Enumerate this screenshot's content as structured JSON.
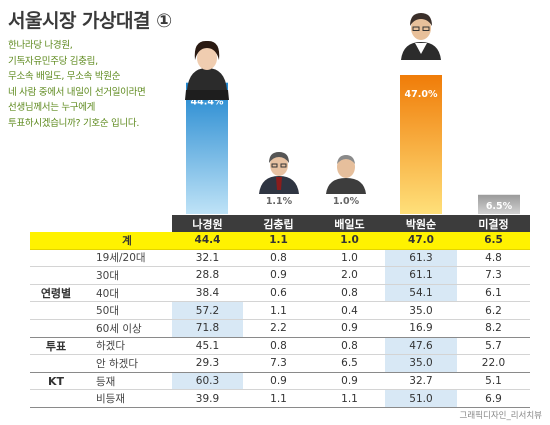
{
  "title": "서울시장 가상대결 ①",
  "question_lines": [
    "한나라당 나경원,",
    "기독자유민주당 김충립,",
    "무소속 배일도, 무소속 박원순",
    "네 사람 중에서 내일이 선거일이라면",
    "선생님께서는 누구에게",
    "투표하시겠습니까? 기호순 입니다."
  ],
  "credit": "그래픽디자인_리서치뷰",
  "colors": {
    "blue_bar": "#2f9bdc",
    "orange_bar": "#f08a0c",
    "gray_bar": "#a8a8a8",
    "header_bg": "#3c3c3c",
    "total_row": "#fff200",
    "highlight": "#d8e8f5"
  },
  "chart_data": {
    "type": "bar",
    "title": "서울시장 가상대결 ①",
    "categories": [
      "나경원",
      "김충립",
      "배일도",
      "박원순",
      "미결정"
    ],
    "values": [
      44.4,
      1.1,
      1.0,
      47.0,
      6.5
    ],
    "value_labels": [
      "44.4%",
      "1.1%",
      "1.0%",
      "47.0%",
      "6.5%"
    ],
    "bar_colors": [
      "blue",
      "none",
      "none",
      "orange",
      "gray"
    ],
    "ylim": [
      0,
      47.0
    ]
  },
  "table": {
    "columns": [
      "나경원",
      "김충립",
      "배일도",
      "박원순",
      "미결정"
    ],
    "rows": [
      {
        "group": "",
        "label": "계",
        "values": [
          "44.4",
          "1.1",
          "1.0",
          "47.0",
          "6.5"
        ],
        "total": true,
        "hl": []
      },
      {
        "group": "",
        "label": "19세/20대",
        "values": [
          "32.1",
          "0.8",
          "1.0",
          "61.3",
          "4.8"
        ],
        "hl": [
          3
        ]
      },
      {
        "group": "",
        "label": "30대",
        "values": [
          "28.8",
          "0.9",
          "2.0",
          "61.1",
          "7.3"
        ],
        "hl": [
          3
        ]
      },
      {
        "group": "연령별",
        "label": "40대",
        "values": [
          "38.4",
          "0.6",
          "0.8",
          "54.1",
          "6.1"
        ],
        "hl": [
          3
        ]
      },
      {
        "group": "",
        "label": "50대",
        "values": [
          "57.2",
          "1.1",
          "0.4",
          "35.0",
          "6.2"
        ],
        "hl": [
          0
        ]
      },
      {
        "group": "",
        "label": "60세 이상",
        "values": [
          "71.8",
          "2.2",
          "0.9",
          "16.9",
          "8.2"
        ],
        "hl": [
          0
        ],
        "end": true
      },
      {
        "group": "투표",
        "label": "하겠다",
        "values": [
          "45.1",
          "0.8",
          "0.8",
          "47.6",
          "5.7"
        ],
        "hl": [
          3
        ]
      },
      {
        "group": "",
        "label": "안 하겠다",
        "values": [
          "29.3",
          "7.3",
          "6.5",
          "35.0",
          "22.0"
        ],
        "hl": [
          3
        ],
        "end": true
      },
      {
        "group": "KT",
        "label": "등재",
        "values": [
          "60.3",
          "0.9",
          "0.9",
          "32.7",
          "5.1"
        ],
        "hl": [
          0
        ]
      },
      {
        "group": "",
        "label": "비등재",
        "values": [
          "39.9",
          "1.1",
          "1.1",
          "51.0",
          "6.9"
        ],
        "hl": [
          3
        ],
        "end": true
      }
    ]
  }
}
